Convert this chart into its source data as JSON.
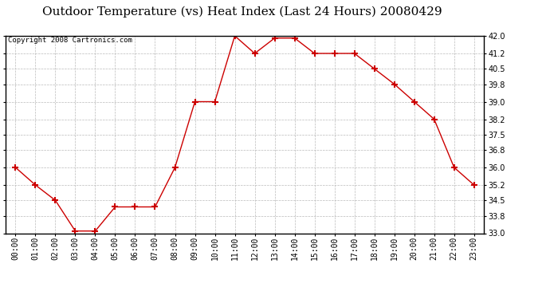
{
  "title": "Outdoor Temperature (vs) Heat Index (Last 24 Hours) 20080429",
  "copyright": "Copyright 2008 Cartronics.com",
  "x_labels": [
    "00:00",
    "01:00",
    "02:00",
    "03:00",
    "04:00",
    "05:00",
    "06:00",
    "07:00",
    "08:00",
    "09:00",
    "10:00",
    "11:00",
    "12:00",
    "13:00",
    "14:00",
    "15:00",
    "16:00",
    "17:00",
    "18:00",
    "19:00",
    "20:00",
    "21:00",
    "22:00",
    "23:00"
  ],
  "y_values": [
    36.0,
    35.2,
    34.5,
    33.1,
    33.1,
    34.2,
    34.2,
    34.2,
    36.0,
    39.0,
    39.0,
    42.0,
    41.2,
    41.9,
    41.9,
    41.2,
    41.2,
    41.2,
    40.5,
    39.8,
    39.0,
    38.2,
    36.0,
    35.2
  ],
  "line_color": "#cc0000",
  "marker": "+",
  "marker_size": 6,
  "marker_linewidth": 1.5,
  "ylim": [
    33.0,
    42.0
  ],
  "yticks": [
    33.0,
    33.8,
    34.5,
    35.2,
    36.0,
    36.8,
    37.5,
    38.2,
    39.0,
    39.8,
    40.5,
    41.2,
    42.0
  ],
  "grid_color": "#bbbbbb",
  "grid_style": "--",
  "bg_color": "#ffffff",
  "title_fontsize": 11,
  "tick_fontsize": 7,
  "copyright_fontsize": 6.5,
  "linewidth": 1.0
}
